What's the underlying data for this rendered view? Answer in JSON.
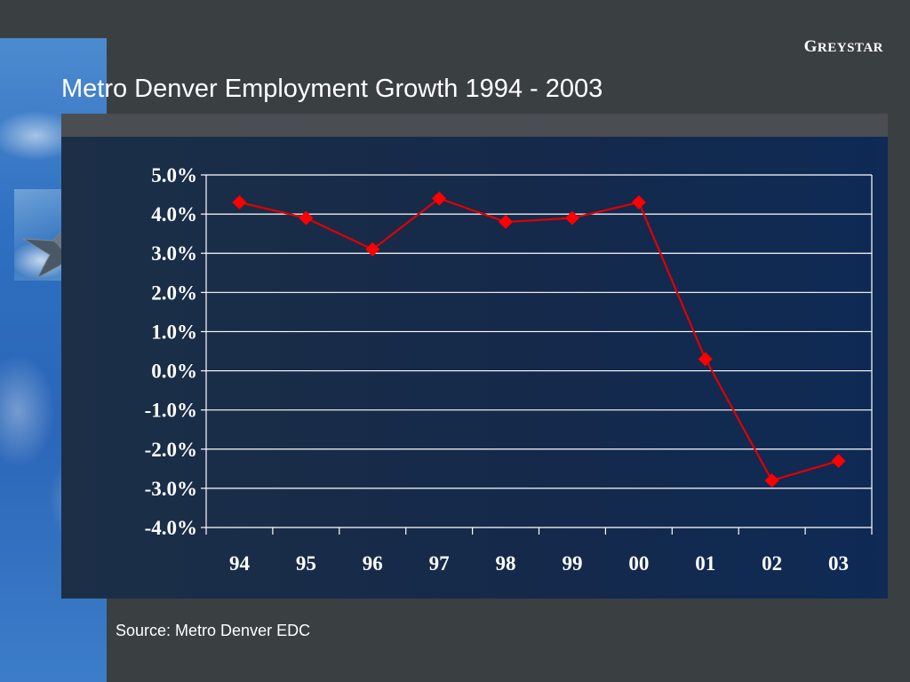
{
  "brand": {
    "initial": "G",
    "rest": "REYSTAR"
  },
  "title": "Metro Denver Employment Growth 1994 - 2003",
  "source": "Source: Metro Denver EDC",
  "colors": {
    "line": "#e00000",
    "marker": "#ff0000",
    "grid": "#ffffff",
    "text": "#ffffff"
  },
  "chart_data": {
    "type": "line",
    "title": "Metro Denver Employment Growth 1994 - 2003",
    "xlabel": "",
    "ylabel": "",
    "categories": [
      "94",
      "95",
      "96",
      "97",
      "98",
      "99",
      "00",
      "01",
      "02",
      "03"
    ],
    "series": [
      {
        "values": [
          4.3,
          3.9,
          3.1,
          4.4,
          3.8,
          3.9,
          4.3,
          0.3,
          -2.8,
          -2.3
        ]
      }
    ],
    "ylim": [
      -4.0,
      5.0
    ],
    "yticks": [
      5.0,
      4.0,
      3.0,
      2.0,
      1.0,
      0.0,
      -1.0,
      -2.0,
      -3.0,
      -4.0
    ],
    "ytick_labels": [
      "5.0%",
      "4.0%",
      "3.0%",
      "2.0%",
      "1.0%",
      "0.0%",
      "-1.0%",
      "-2.0%",
      "-3.0%",
      "-4.0%"
    ],
    "grid": true,
    "legend": "none",
    "marker": "diamond"
  }
}
